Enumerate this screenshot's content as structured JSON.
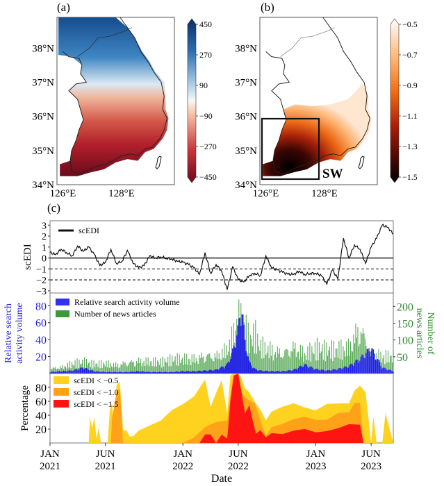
{
  "figure": {
    "panel_a_label": "(a)",
    "panel_b_label": "(b)",
    "panel_c_label": "(c)",
    "region_box_label": "SW",
    "lat_ticks": [
      "38°N",
      "37°N",
      "36°N",
      "35°N",
      "34°N"
    ],
    "lon_ticks": [
      "126°E",
      "128°E"
    ]
  },
  "chart_data": [
    {
      "type": "heatmap",
      "panel": "(a)",
      "title": "",
      "xlabel": "",
      "ylabel": "",
      "xlim": [
        125.8,
        129.8
      ],
      "ylim": [
        34.0,
        38.9
      ],
      "colorbar": {
        "ticks": [
          "450",
          "270",
          "90",
          "−90",
          "−270",
          "−450"
        ],
        "range": [
          -450,
          450
        ],
        "colormap": "RdBu"
      },
      "pattern": "positive (blue) in north (>37°N), negative (dark red) in southwest"
    },
    {
      "type": "heatmap",
      "panel": "(b)",
      "title": "",
      "xlabel": "",
      "ylabel": "",
      "xlim": [
        125.8,
        129.8
      ],
      "ylim": [
        34.0,
        38.9
      ],
      "colorbar": {
        "ticks": [
          "−0.5",
          "−0.7",
          "−0.9",
          "−1.1",
          "−1.3",
          "−1.5"
        ],
        "range": [
          -1.5,
          -0.5
        ],
        "colormap": "gist_heat"
      },
      "pattern": "values only below ~36.3°N; darkest (−1.5) in southwest",
      "annotation_box": {
        "label": "SW",
        "lon": [
          126.0,
          128.0
        ],
        "lat": [
          34.1,
          35.9
        ]
      }
    },
    {
      "type": "line",
      "panel": "(c) top",
      "ylabel": "scEDI",
      "ylim": [
        -3.2,
        3.4
      ],
      "yticks": [
        "3",
        "2",
        "1",
        "0",
        "−1",
        "−2",
        "−3"
      ],
      "hlines": [
        {
          "y": 0,
          "style": "solid"
        },
        {
          "y": -1,
          "style": "dashed"
        },
        {
          "y": -2,
          "style": "dashed"
        }
      ],
      "legend": [
        "scEDI"
      ],
      "legend_position": "top-left",
      "x_months": [
        0,
        0.5,
        1,
        1.5,
        2,
        2.5,
        3,
        3.5,
        4,
        4.5,
        5,
        5.5,
        6,
        6.5,
        7,
        7.5,
        8,
        8.5,
        9,
        9.5,
        10,
        10.5,
        11,
        11.5,
        12,
        12.5,
        13,
        13.5,
        14,
        14.5,
        15,
        15.5,
        16,
        16.5,
        17,
        17.5,
        18,
        18.5,
        19,
        19.5,
        20,
        20.5,
        21,
        21.5,
        22,
        22.5,
        23,
        23.5,
        24,
        24.5,
        25,
        25.5,
        26,
        26.5,
        27,
        27.5,
        28,
        28.5,
        29,
        29.5,
        30,
        30.5,
        31
      ],
      "values": [
        0.5,
        0.3,
        0.8,
        0.5,
        0.2,
        1.1,
        0.6,
        1.0,
        0.3,
        -0.7,
        -0.4,
        0.8,
        -0.5,
        -0.3,
        0.7,
        -0.5,
        -0.9,
        -0.7,
        0.2,
        0.0,
        0.1,
        0.0,
        -0.1,
        -0.3,
        -0.4,
        -0.6,
        -0.9,
        -1.5,
        0.5,
        -1.4,
        -0.6,
        -1.2,
        -2.9,
        -0.8,
        -2.0,
        -2.2,
        -1.6,
        -1.4,
        -1.6,
        0.2,
        -0.9,
        -1.1,
        -1.3,
        -1.5,
        -1.5,
        -1.2,
        -1.5,
        -1.4,
        -1.4,
        -1.6,
        -2.4,
        -1.1,
        -1.9,
        1.8,
        0.0,
        1.2,
        0.8,
        -0.5,
        1.0,
        1.8,
        3.0,
        2.8,
        2.2
      ]
    },
    {
      "type": "bar",
      "panel": "(c) middle",
      "ylabel_left": "Relative search activity volume",
      "ylabel_right": "Number of news articles",
      "ylim_left": [
        0,
        95
      ],
      "ylim_right": [
        0,
        240
      ],
      "yticks_left": [
        "20",
        "40",
        "60",
        "80"
      ],
      "yticks_right": [
        "50",
        "100",
        "150",
        "200"
      ],
      "legend_position": "top-left",
      "series": [
        {
          "name": "Relative search activity volume",
          "color": "#1f1fe6",
          "axis": "left",
          "x_months": [
            0,
            1,
            2,
            3,
            4,
            5,
            6,
            7,
            8,
            9,
            10,
            11,
            12,
            13,
            14,
            15,
            16,
            16.5,
            17,
            17.3,
            17.6,
            18,
            18.5,
            19,
            20,
            21,
            22,
            23,
            24,
            25,
            26,
            27,
            28,
            29,
            30,
            31
          ],
          "values": [
            2,
            3,
            4,
            8,
            3,
            2,
            2,
            2,
            3,
            2,
            2,
            2,
            3,
            3,
            4,
            5,
            12,
            30,
            60,
            95,
            45,
            15,
            6,
            4,
            3,
            3,
            5,
            12,
            6,
            4,
            6,
            10,
            20,
            34,
            8,
            3
          ]
        },
        {
          "name": "Number of news articles",
          "color": "#3a9a3a",
          "axis": "right",
          "x_months": [
            0,
            1,
            2,
            3,
            4,
            5,
            6,
            7,
            8,
            9,
            10,
            11,
            12,
            13,
            14,
            15,
            16,
            16.5,
            17,
            17.3,
            17.6,
            18,
            18.5,
            19,
            20,
            21,
            22,
            23,
            24,
            25,
            26,
            27,
            28,
            29,
            30,
            31
          ],
          "values": [
            25,
            30,
            45,
            50,
            40,
            45,
            40,
            55,
            60,
            55,
            50,
            60,
            65,
            70,
            90,
            85,
            110,
            160,
            230,
            220,
            200,
            140,
            170,
            120,
            110,
            100,
            130,
            90,
            110,
            100,
            105,
            120,
            230,
            100,
            80,
            75
          ]
        }
      ]
    },
    {
      "type": "area",
      "panel": "(c) bottom",
      "xlabel": "Date",
      "ylabel": "Percentage",
      "ylim": [
        0,
        100
      ],
      "yticks": [
        "20",
        "40",
        "60",
        "80"
      ],
      "xticks": [
        "JAN\n2021",
        "JUN\n2021",
        "JAN\n2022",
        "JUN\n2022",
        "JAN\n2023",
        "JUN\n2023"
      ],
      "xtick_months": [
        0,
        5,
        12,
        17,
        24,
        29
      ],
      "xlim_months": [
        0,
        31
      ],
      "legend_position": "top-left",
      "series": [
        {
          "name": "scEDI < −0.5",
          "color": "#ffd21f",
          "x_months": [
            0,
            3.5,
            3.6,
            3.8,
            4.0,
            4.2,
            4.4,
            4.6,
            5.2,
            5.4,
            5.6,
            5.8,
            6.0,
            6.3,
            6.6,
            6.9,
            7.2,
            7.5,
            8,
            9,
            10,
            11,
            12,
            13,
            14,
            14.5,
            15,
            15.5,
            16,
            16.3,
            16.6,
            17,
            17.3,
            17.6,
            18,
            18.5,
            19,
            19.5,
            20,
            21,
            22,
            23,
            24,
            25,
            26,
            27,
            27.5,
            28,
            28.5,
            29,
            29.2,
            29.5,
            30,
            30.3,
            31
          ],
          "values": [
            0,
            0,
            35,
            20,
            40,
            5,
            20,
            0,
            0,
            45,
            60,
            10,
            80,
            90,
            20,
            15,
            10,
            12,
            15,
            25,
            35,
            45,
            55,
            70,
            90,
            50,
            75,
            90,
            40,
            100,
            100,
            100,
            95,
            80,
            70,
            60,
            50,
            30,
            45,
            55,
            55,
            50,
            50,
            55,
            55,
            60,
            75,
            80,
            75,
            0,
            35,
            0,
            0,
            40,
            0
          ]
        },
        {
          "name": "scEDI < −1.0",
          "color": "#ffa21a",
          "x_months": [
            0,
            5.5,
            5.6,
            6.0,
            6.3,
            6.6,
            7,
            12,
            13,
            14,
            15,
            16,
            16.5,
            17,
            17.5,
            18,
            18.5,
            19,
            19.5,
            20,
            21,
            22,
            23,
            24,
            25,
            26,
            27,
            27.5,
            28,
            28.3,
            28.5,
            31
          ],
          "values": [
            0,
            0,
            35,
            70,
            80,
            0,
            0,
            0,
            10,
            20,
            30,
            35,
            90,
            80,
            70,
            60,
            55,
            35,
            10,
            20,
            30,
            35,
            35,
            35,
            35,
            40,
            45,
            60,
            55,
            0,
            0,
            0
          ]
        },
        {
          "name": "scEDI < −1.5",
          "color": "#ff1414",
          "x_months": [
            0,
            13.5,
            14,
            14.5,
            15,
            15.5,
            16,
            16.3,
            16.6,
            17,
            17.3,
            17.6,
            18,
            18.3,
            18.6,
            19,
            19.5,
            20,
            21,
            22,
            23,
            24,
            25,
            26,
            27,
            28,
            28.3,
            31
          ],
          "values": [
            0,
            0,
            15,
            10,
            0,
            15,
            5,
            60,
            100,
            100,
            70,
            45,
            55,
            30,
            15,
            20,
            5,
            15,
            15,
            15,
            20,
            18,
            15,
            20,
            30,
            25,
            0,
            0
          ]
        }
      ]
    }
  ]
}
